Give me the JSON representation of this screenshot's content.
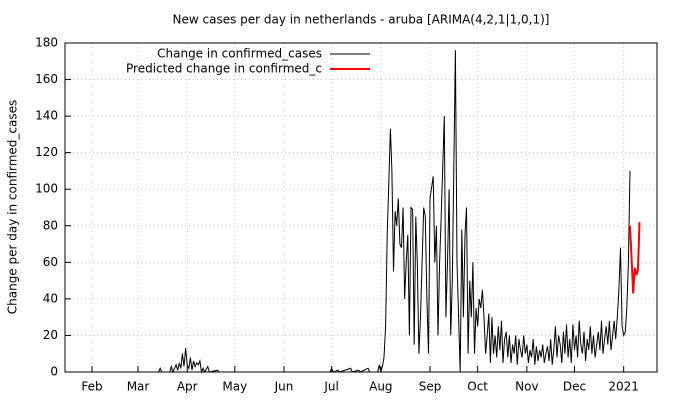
{
  "chart_data": {
    "type": "line",
    "title": "New cases per day in netherlands - aruba [ARIMA(4,2,1|1,0,1)]",
    "y_label": "Change per day in confirmed_cases",
    "xlim": [
      14,
      387
    ],
    "ylim": [
      0,
      180
    ],
    "xticks": [
      {
        "value": 31,
        "label": "Feb"
      },
      {
        "value": 60,
        "label": "Mar"
      },
      {
        "value": 91,
        "label": "Apr"
      },
      {
        "value": 121,
        "label": "May"
      },
      {
        "value": 152,
        "label": "Jun"
      },
      {
        "value": 182,
        "label": "Jul"
      },
      {
        "value": 213,
        "label": "Aug"
      },
      {
        "value": 244,
        "label": "Sep"
      },
      {
        "value": 274,
        "label": "Oct"
      },
      {
        "value": 305,
        "label": "Nov"
      },
      {
        "value": 335,
        "label": "Dec"
      },
      {
        "value": 366,
        "label": "2021"
      }
    ],
    "yticks": [
      0,
      20,
      40,
      60,
      80,
      100,
      120,
      140,
      160,
      180
    ],
    "grid": true,
    "legend": "top-left",
    "series": [
      {
        "name": "Change in confirmed_cases",
        "color": "#000000",
        "x": [
          64,
          73,
          74,
          75,
          80,
          81,
          82,
          84,
          85,
          86,
          87,
          88,
          89,
          90,
          91,
          92,
          93,
          94,
          95,
          96,
          97,
          98,
          99,
          100,
          101,
          102,
          104,
          105,
          110,
          111,
          181,
          182,
          183,
          186,
          187,
          194,
          195,
          199,
          200,
          205,
          206,
          211,
          212,
          213,
          214,
          215,
          216,
          217,
          219,
          220,
          221,
          222,
          223,
          224,
          225,
          226,
          227,
          228,
          229,
          230,
          231,
          232,
          233,
          234,
          235,
          236,
          237,
          238,
          239,
          240,
          241,
          242,
          243,
          244,
          246,
          247,
          248,
          249,
          250,
          251,
          253,
          254,
          255,
          256,
          257,
          258,
          260,
          261,
          263,
          264,
          265,
          266,
          267,
          268,
          269,
          270,
          271,
          272,
          273,
          274,
          275,
          276,
          277,
          278,
          279,
          280,
          281,
          282,
          283,
          284,
          285,
          286,
          287,
          288,
          289,
          290,
          291,
          292,
          293,
          294,
          295,
          296,
          297,
          298,
          299,
          300,
          301,
          302,
          303,
          304,
          305,
          306,
          307,
          308,
          309,
          310,
          311,
          312,
          313,
          314,
          315,
          316,
          317,
          318,
          319,
          320,
          321,
          322,
          323,
          324,
          325,
          326,
          327,
          328,
          329,
          330,
          331,
          332,
          333,
          334,
          335,
          336,
          337,
          338,
          339,
          340,
          341,
          342,
          343,
          344,
          345,
          346,
          347,
          348,
          349,
          350,
          351,
          352,
          353,
          354,
          355,
          356,
          357,
          358,
          359,
          360,
          361,
          362,
          363,
          364,
          365,
          366,
          367,
          368,
          369,
          370
        ],
        "values": [
          0,
          0,
          2,
          0,
          0,
          3,
          0,
          4,
          1,
          5,
          2,
          10,
          3,
          13,
          4,
          2,
          8,
          1,
          6,
          3,
          5,
          4,
          6,
          0,
          2,
          0,
          3,
          0,
          1,
          0,
          0,
          2,
          0,
          1,
          0,
          2,
          0,
          1,
          0,
          2,
          0,
          0,
          4,
          0,
          3,
          8,
          25,
          75,
          133,
          110,
          55,
          88,
          80,
          95,
          70,
          68,
          90,
          40,
          60,
          75,
          20,
          90,
          89,
          15,
          85,
          60,
          10,
          30,
          60,
          90,
          85,
          40,
          10,
          95,
          107,
          60,
          80,
          20,
          60,
          85,
          140,
          30,
          60,
          100,
          20,
          50,
          176,
          60,
          0,
          78,
          30,
          75,
          90,
          10,
          50,
          30,
          60,
          10,
          35,
          25,
          40,
          35,
          45,
          30,
          10,
          20,
          32,
          5,
          30,
          10,
          20,
          8,
          25,
          12,
          28,
          5,
          18,
          22,
          8,
          20,
          5,
          15,
          10,
          20,
          4,
          18,
          12,
          8,
          20,
          10,
          15,
          5,
          12,
          8,
          18,
          4,
          14,
          6,
          12,
          8,
          15,
          5,
          10,
          14,
          6,
          18,
          4,
          12,
          25,
          8,
          20,
          15,
          5,
          22,
          10,
          26,
          8,
          18,
          5,
          26,
          12,
          20,
          8,
          28,
          15,
          10,
          22,
          6,
          18,
          12,
          25,
          10,
          20,
          8,
          15,
          22,
          12,
          28,
          10,
          18,
          25,
          15,
          28,
          12,
          20,
          28,
          18,
          30,
          45,
          68,
          25,
          20,
          22,
          35,
          60,
          110
        ]
      },
      {
        "name": "Predicted change in confirmed_c",
        "color": "#ff0000",
        "x": [
          370,
          371,
          372,
          373,
          374,
          375,
          376
        ],
        "values": [
          80,
          62,
          43,
          57,
          53,
          56,
          82
        ]
      }
    ]
  }
}
